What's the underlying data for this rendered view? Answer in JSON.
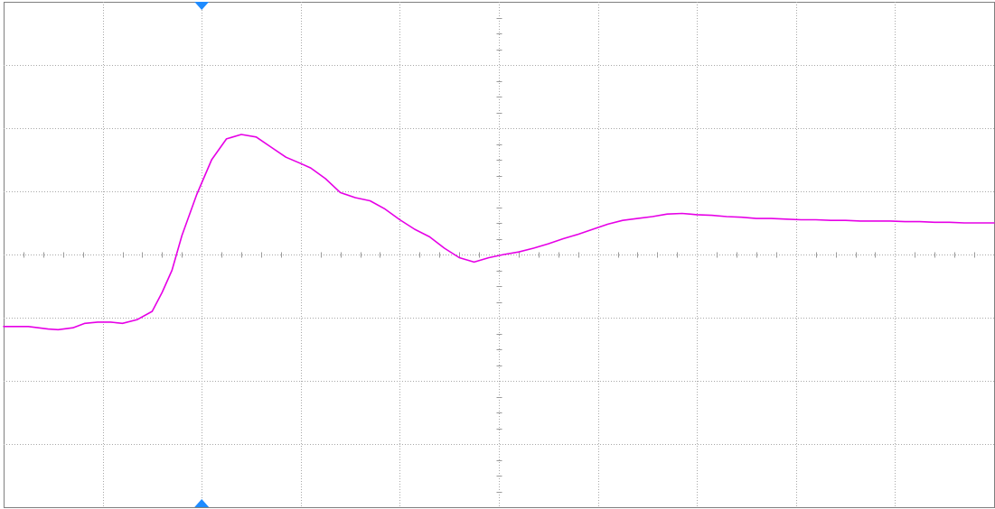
{
  "chart_data": {
    "type": "line",
    "title": "",
    "xlabel": "",
    "ylabel": "",
    "xlim": [
      -5,
      5
    ],
    "ylim": [
      -4,
      4
    ],
    "x_divisions": 10,
    "y_divisions": 8,
    "grid": true,
    "legend": "none",
    "series": [
      {
        "color": "#e600e6",
        "x": [
          -5.0,
          -4.75,
          -4.55,
          -4.45,
          -4.3,
          -4.18,
          -4.05,
          -3.92,
          -3.8,
          -3.65,
          -3.5,
          -3.4,
          -3.3,
          -3.2,
          -3.05,
          -2.9,
          -2.75,
          -2.6,
          -2.45,
          -2.3,
          -2.15,
          -2.0,
          -1.9,
          -1.75,
          -1.6,
          -1.45,
          -1.3,
          -1.15,
          -1.0,
          -0.85,
          -0.7,
          -0.55,
          -0.4,
          -0.25,
          -0.1,
          0.05,
          0.2,
          0.35,
          0.5,
          0.65,
          0.8,
          0.95,
          1.1,
          1.25,
          1.4,
          1.55,
          1.7,
          1.85,
          2.0,
          2.15,
          2.3,
          2.45,
          2.6,
          2.75,
          2.9,
          3.05,
          3.2,
          3.35,
          3.5,
          3.65,
          3.8,
          3.95,
          4.1,
          4.25,
          4.4,
          4.55,
          4.7,
          4.85,
          5.0
        ],
        "y": [
          -1.14,
          -1.14,
          -1.18,
          -1.19,
          -1.16,
          -1.09,
          -1.07,
          -1.07,
          -1.09,
          -1.03,
          -0.9,
          -0.6,
          -0.25,
          0.3,
          0.95,
          1.5,
          1.83,
          1.9,
          1.86,
          1.7,
          1.54,
          1.44,
          1.37,
          1.2,
          0.98,
          0.9,
          0.85,
          0.72,
          0.55,
          0.4,
          0.28,
          0.1,
          -0.05,
          -0.12,
          -0.05,
          0.0,
          0.04,
          0.1,
          0.17,
          0.25,
          0.32,
          0.4,
          0.48,
          0.54,
          0.57,
          0.6,
          0.64,
          0.65,
          0.63,
          0.62,
          0.6,
          0.59,
          0.57,
          0.57,
          0.56,
          0.55,
          0.55,
          0.54,
          0.54,
          0.53,
          0.53,
          0.53,
          0.52,
          0.52,
          0.51,
          0.51,
          0.5,
          0.5,
          0.5
        ]
      }
    ],
    "markers": [
      {
        "position": "top",
        "x": -3.0,
        "color": "#1e8bff"
      },
      {
        "position": "bottom",
        "x": -3.0,
        "color": "#1e8bff"
      }
    ]
  }
}
